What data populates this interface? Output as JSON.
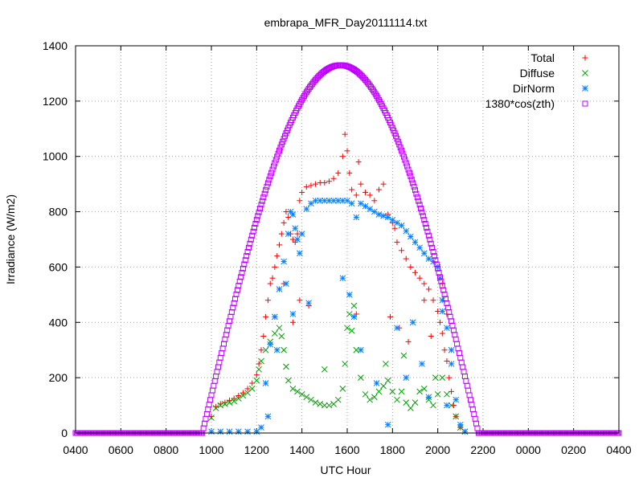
{
  "chart_data": {
    "type": "scatter",
    "title": "embrapa_MFR_Day20111114.txt",
    "xlabel": "UTC Hour",
    "ylabel": "Irradiance (W/m2)",
    "ylim": [
      0,
      1400
    ],
    "xlim_hours": [
      4,
      28
    ],
    "grid": true,
    "legend_position": "top-right",
    "y_ticks": [
      "0",
      "200",
      "400",
      "600",
      "800",
      "1000",
      "1200",
      "1400"
    ],
    "x_ticks": [
      "0400",
      "0600",
      "0800",
      "1000",
      "1200",
      "1400",
      "1600",
      "1800",
      "2000",
      "2200",
      "0000",
      "0200",
      "0400"
    ],
    "series": [
      {
        "name": "Total",
        "color": "#ff0000",
        "marker": "plus",
        "points": [
          [
            10.0,
            60
          ],
          [
            10.2,
            95
          ],
          [
            10.4,
            105
          ],
          [
            10.6,
            110
          ],
          [
            10.8,
            118
          ],
          [
            11.0,
            125
          ],
          [
            11.2,
            135
          ],
          [
            11.4,
            145
          ],
          [
            11.6,
            160
          ],
          [
            11.8,
            180
          ],
          [
            12.0,
            210
          ],
          [
            12.1,
            250
          ],
          [
            12.2,
            300
          ],
          [
            12.3,
            350
          ],
          [
            12.4,
            420
          ],
          [
            12.5,
            480
          ],
          [
            12.6,
            540
          ],
          [
            12.7,
            560
          ],
          [
            12.8,
            600
          ],
          [
            12.9,
            640
          ],
          [
            13.0,
            680
          ],
          [
            13.1,
            720
          ],
          [
            13.2,
            760
          ],
          [
            13.3,
            800
          ],
          [
            13.4,
            780
          ],
          [
            13.5,
            720
          ],
          [
            13.6,
            700
          ],
          [
            13.7,
            690
          ],
          [
            13.8,
            720
          ],
          [
            13.9,
            840
          ],
          [
            14.0,
            870
          ],
          [
            14.2,
            890
          ],
          [
            14.4,
            895
          ],
          [
            14.6,
            900
          ],
          [
            14.8,
            905
          ],
          [
            15.0,
            905
          ],
          [
            15.2,
            910
          ],
          [
            15.4,
            920
          ],
          [
            15.6,
            940
          ],
          [
            15.8,
            1000
          ],
          [
            15.9,
            1080
          ],
          [
            16.0,
            1020
          ],
          [
            16.1,
            940
          ],
          [
            16.2,
            880
          ],
          [
            16.4,
            860
          ],
          [
            16.5,
            980
          ],
          [
            16.6,
            900
          ],
          [
            16.8,
            870
          ],
          [
            17.0,
            860
          ],
          [
            17.2,
            840
          ],
          [
            17.4,
            880
          ],
          [
            17.6,
            900
          ],
          [
            17.8,
            790
          ],
          [
            18.0,
            760
          ],
          [
            18.1,
            740
          ],
          [
            18.2,
            690
          ],
          [
            18.4,
            660
          ],
          [
            18.6,
            630
          ],
          [
            18.8,
            600
          ],
          [
            19.0,
            580
          ],
          [
            19.2,
            560
          ],
          [
            19.4,
            540
          ],
          [
            19.6,
            520
          ],
          [
            19.8,
            480
          ],
          [
            20.0,
            440
          ],
          [
            20.1,
            400
          ],
          [
            20.2,
            360
          ],
          [
            20.3,
            300
          ],
          [
            20.4,
            260
          ],
          [
            20.5,
            200
          ],
          [
            20.6,
            150
          ],
          [
            20.7,
            100
          ],
          [
            20.8,
            60
          ],
          [
            21.0,
            20
          ],
          [
            12.8,
            420
          ],
          [
            13.2,
            540
          ],
          [
            13.6,
            400
          ],
          [
            13.9,
            480
          ],
          [
            14.3,
            460
          ],
          [
            16.4,
            430
          ],
          [
            17.9,
            420
          ],
          [
            18.3,
            380
          ],
          [
            18.7,
            330
          ],
          [
            19.4,
            480
          ],
          [
            19.7,
            350
          ],
          [
            20.2,
            540
          ],
          [
            20.4,
            430
          ]
        ]
      },
      {
        "name": "Diffuse",
        "color": "#00a000",
        "marker": "x",
        "points": [
          [
            10.0,
            55
          ],
          [
            10.2,
            90
          ],
          [
            10.4,
            100
          ],
          [
            10.6,
            105
          ],
          [
            10.8,
            110
          ],
          [
            11.0,
            115
          ],
          [
            11.2,
            125
          ],
          [
            11.4,
            135
          ],
          [
            11.6,
            145
          ],
          [
            11.8,
            160
          ],
          [
            12.0,
            190
          ],
          [
            12.1,
            230
          ],
          [
            12.2,
            260
          ],
          [
            12.4,
            300
          ],
          [
            12.6,
            330
          ],
          [
            12.8,
            360
          ],
          [
            13.0,
            380
          ],
          [
            13.1,
            350
          ],
          [
            13.2,
            300
          ],
          [
            13.3,
            240
          ],
          [
            13.4,
            190
          ],
          [
            13.6,
            160
          ],
          [
            13.8,
            150
          ],
          [
            14.0,
            140
          ],
          [
            14.2,
            130
          ],
          [
            14.4,
            120
          ],
          [
            14.6,
            110
          ],
          [
            14.8,
            105
          ],
          [
            15.0,
            100
          ],
          [
            15.2,
            100
          ],
          [
            15.4,
            105
          ],
          [
            15.6,
            120
          ],
          [
            15.8,
            160
          ],
          [
            15.9,
            250
          ],
          [
            16.0,
            380
          ],
          [
            16.1,
            430
          ],
          [
            16.2,
            370
          ],
          [
            16.4,
            300
          ],
          [
            16.6,
            200
          ],
          [
            16.8,
            140
          ],
          [
            17.0,
            120
          ],
          [
            17.2,
            130
          ],
          [
            17.4,
            150
          ],
          [
            17.6,
            170
          ],
          [
            17.8,
            190
          ],
          [
            18.0,
            150
          ],
          [
            18.2,
            120
          ],
          [
            18.4,
            150
          ],
          [
            18.6,
            110
          ],
          [
            18.8,
            90
          ],
          [
            19.0,
            110
          ],
          [
            19.2,
            150
          ],
          [
            19.4,
            160
          ],
          [
            19.6,
            120
          ],
          [
            19.8,
            100
          ],
          [
            20.0,
            140
          ],
          [
            20.2,
            200
          ],
          [
            20.4,
            140
          ],
          [
            20.6,
            100
          ],
          [
            20.8,
            60
          ],
          [
            21.0,
            20
          ],
          [
            21.2,
            5
          ],
          [
            15.0,
            230
          ],
          [
            16.3,
            460
          ],
          [
            17.7,
            250
          ],
          [
            18.5,
            280
          ],
          [
            19.9,
            200
          ]
        ]
      },
      {
        "name": "DirNorm",
        "color": "#0080ff",
        "marker": "star",
        "points": [
          [
            10.0,
            5
          ],
          [
            10.4,
            5
          ],
          [
            10.8,
            5
          ],
          [
            11.2,
            5
          ],
          [
            11.6,
            5
          ],
          [
            12.0,
            5
          ],
          [
            12.2,
            20
          ],
          [
            12.4,
            180
          ],
          [
            12.6,
            320
          ],
          [
            12.8,
            420
          ],
          [
            13.0,
            520
          ],
          [
            13.2,
            620
          ],
          [
            13.4,
            720
          ],
          [
            13.5,
            800
          ],
          [
            13.6,
            790
          ],
          [
            13.7,
            740
          ],
          [
            13.8,
            700
          ],
          [
            13.9,
            650
          ],
          [
            14.0,
            720
          ],
          [
            14.2,
            810
          ],
          [
            14.4,
            830
          ],
          [
            14.6,
            840
          ],
          [
            14.8,
            840
          ],
          [
            15.0,
            840
          ],
          [
            15.2,
            840
          ],
          [
            15.4,
            840
          ],
          [
            15.6,
            840
          ],
          [
            15.8,
            840
          ],
          [
            16.0,
            840
          ],
          [
            16.2,
            830
          ],
          [
            16.4,
            780
          ],
          [
            16.6,
            830
          ],
          [
            16.8,
            820
          ],
          [
            17.0,
            810
          ],
          [
            17.2,
            800
          ],
          [
            17.4,
            790
          ],
          [
            17.6,
            785
          ],
          [
            17.8,
            780
          ],
          [
            18.0,
            770
          ],
          [
            18.2,
            760
          ],
          [
            18.4,
            750
          ],
          [
            18.6,
            730
          ],
          [
            18.8,
            710
          ],
          [
            19.0,
            690
          ],
          [
            19.2,
            670
          ],
          [
            19.4,
            650
          ],
          [
            19.6,
            630
          ],
          [
            19.8,
            620
          ],
          [
            20.0,
            600
          ],
          [
            20.1,
            560
          ],
          [
            20.2,
            480
          ],
          [
            20.4,
            380
          ],
          [
            20.6,
            250
          ],
          [
            20.8,
            120
          ],
          [
            21.0,
            30
          ],
          [
            21.2,
            5
          ],
          [
            12.5,
            60
          ],
          [
            12.9,
            300
          ],
          [
            13.3,
            540
          ],
          [
            13.6,
            430
          ],
          [
            14.3,
            470
          ],
          [
            15.8,
            560
          ],
          [
            16.1,
            500
          ],
          [
            16.3,
            420
          ],
          [
            16.6,
            300
          ],
          [
            17.3,
            180
          ],
          [
            17.8,
            30
          ],
          [
            18.2,
            380
          ],
          [
            18.6,
            200
          ],
          [
            18.9,
            400
          ],
          [
            19.3,
            250
          ],
          [
            19.6,
            130
          ],
          [
            20.2,
            440
          ],
          [
            20.4,
            100
          ],
          [
            20.6,
            300
          ]
        ]
      },
      {
        "name": "1380*cos(zth)",
        "color": "#c000ff",
        "marker": "square",
        "curve": {
          "start_hour": 9.6,
          "peak_hour": 15.7,
          "end_hour": 21.8,
          "peak_value": 1330
        }
      }
    ]
  }
}
